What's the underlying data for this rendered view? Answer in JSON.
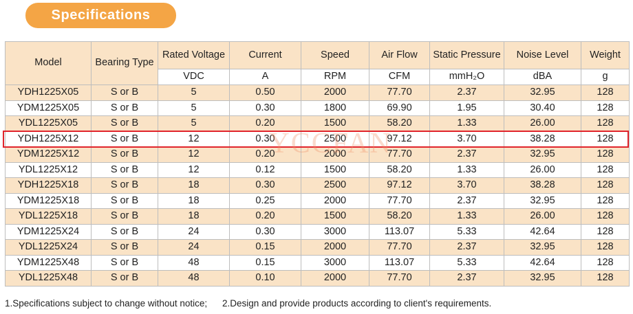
{
  "title": "Specifications",
  "columns": [
    {
      "label": "Model",
      "unit": ""
    },
    {
      "label": "Bearing Type",
      "unit": ""
    },
    {
      "label": "Rated Voltage",
      "unit": "VDC"
    },
    {
      "label": "Current",
      "unit": "A"
    },
    {
      "label": "Speed",
      "unit": "RPM"
    },
    {
      "label": "Air Flow",
      "unit": "CFM"
    },
    {
      "label": "Static Pressure",
      "unit": "mmH₂O"
    },
    {
      "label": "Noise Level",
      "unit": "dBA"
    },
    {
      "label": "Weight",
      "unit": "g"
    }
  ],
  "rows": [
    [
      "YDH1225X05",
      "S or B",
      "5",
      "0.50",
      "2000",
      "77.70",
      "2.37",
      "32.95",
      "128"
    ],
    [
      "YDM1225X05",
      "S or B",
      "5",
      "0.30",
      "1800",
      "69.90",
      "1.95",
      "30.40",
      "128"
    ],
    [
      "YDL1225X05",
      "S or B",
      "5",
      "0.20",
      "1500",
      "58.20",
      "1.33",
      "26.00",
      "128"
    ],
    [
      "YDH1225X12",
      "S or B",
      "12",
      "0.30",
      "2500",
      "97.12",
      "3.70",
      "38.28",
      "128"
    ],
    [
      "YDM1225X12",
      "S or B",
      "12",
      "0.20",
      "2000",
      "77.70",
      "2.37",
      "32.95",
      "128"
    ],
    [
      "YDL1225X12",
      "S or B",
      "12",
      "0.12",
      "1500",
      "58.20",
      "1.33",
      "26.00",
      "128"
    ],
    [
      "YDH1225X18",
      "S or B",
      "18",
      "0.30",
      "2500",
      "97.12",
      "3.70",
      "38.28",
      "128"
    ],
    [
      "YDM1225X18",
      "S or B",
      "18",
      "0.25",
      "2000",
      "77.70",
      "2.37",
      "32.95",
      "128"
    ],
    [
      "YDL1225X18",
      "S or B",
      "18",
      "0.20",
      "1500",
      "58.20",
      "1.33",
      "26.00",
      "128"
    ],
    [
      "YDM1225X24",
      "S or B",
      "24",
      "0.30",
      "3000",
      "113.07",
      "5.33",
      "42.64",
      "128"
    ],
    [
      "YDL1225X24",
      "S or B",
      "24",
      "0.15",
      "2000",
      "77.70",
      "2.37",
      "32.95",
      "128"
    ],
    [
      "YDM1225X48",
      "S or B",
      "48",
      "0.15",
      "3000",
      "113.07",
      "5.33",
      "42.64",
      "128"
    ],
    [
      "YDL1225X48",
      "S or B",
      "48",
      "0.10",
      "2000",
      "77.70",
      "2.37",
      "32.95",
      "128"
    ]
  ],
  "highlighted_model": "YDH1225X12",
  "watermark": "YCCFAN",
  "notes": [
    "1.Specifications subject to change without notice;",
    "2.Design and provide products according to client's requirements."
  ],
  "colors": {
    "banner": "#f4a545",
    "row_stripe": "#fae3c6",
    "highlight_border": "#e0242b"
  }
}
